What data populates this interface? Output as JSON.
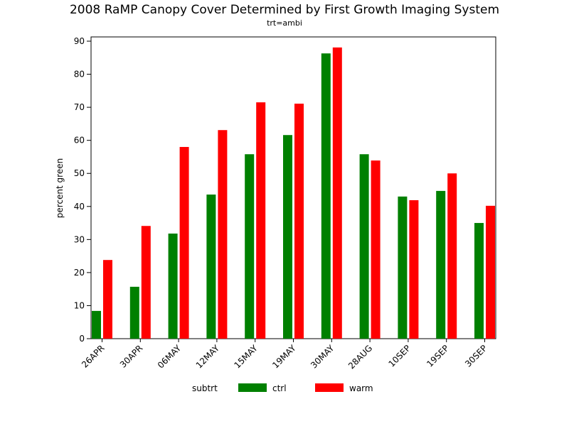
{
  "chart_data": {
    "type": "bar",
    "title": "2008 RaMP Canopy Cover Determined by First Growth Imaging System",
    "subtitle": "trt=ambi",
    "y_label": "percent green",
    "legend_title": "subtrt",
    "categories": [
      "26APR",
      "30APR",
      "06MAY",
      "12MAY",
      "15MAY",
      "19MAY",
      "30MAY",
      "28AUG",
      "10SEP",
      "19SEP",
      "30SEP"
    ],
    "series": [
      {
        "name": "ctrl",
        "color": "#008000",
        "values": [
          8.4,
          15.7,
          31.8,
          43.6,
          55.8,
          61.6,
          86.3,
          55.8,
          43.0,
          44.7,
          35.0
        ]
      },
      {
        "name": "warm",
        "color": "#ff0000",
        "values": [
          23.8,
          34.1,
          58.0,
          63.1,
          71.5,
          71.1,
          88.1,
          53.9,
          41.9,
          50.0,
          40.2
        ]
      }
    ],
    "ylim": [
      0,
      90
    ],
    "yticks": [
      0,
      10,
      20,
      30,
      40,
      50,
      60,
      70,
      80,
      90
    ]
  }
}
